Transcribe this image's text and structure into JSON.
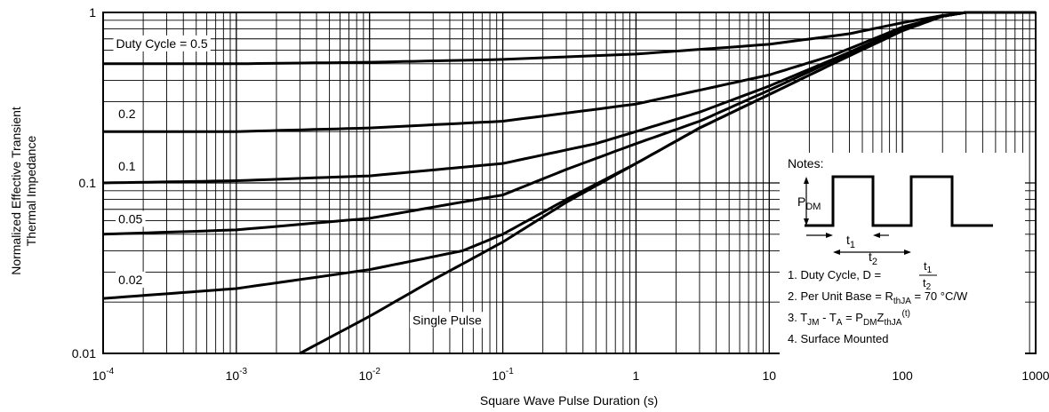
{
  "chart_data": {
    "type": "line",
    "xlabel": "Square Wave Pulse Duration (s)",
    "ylabel_line1": "Normalized Effective Transient",
    "ylabel_line2": "Thermal Impedance",
    "xscale": "log",
    "yscale": "log",
    "xlim": [
      0.0001,
      1000
    ],
    "ylim": [
      0.01,
      1
    ],
    "grid": true,
    "x_ticks": [
      {
        "value": 0.0001,
        "base": "10",
        "exp": "-4"
      },
      {
        "value": 0.001,
        "base": "10",
        "exp": "-3"
      },
      {
        "value": 0.01,
        "base": "10",
        "exp": "-2"
      },
      {
        "value": 0.1,
        "base": "10",
        "exp": "-1"
      },
      {
        "value": 1,
        "base": "1",
        "exp": ""
      },
      {
        "value": 10,
        "base": "10",
        "exp": ""
      },
      {
        "value": 100,
        "base": "100",
        "exp": ""
      },
      {
        "value": 1000,
        "base": "1000",
        "exp": ""
      }
    ],
    "y_ticks": [
      {
        "value": 1,
        "label": "1"
      },
      {
        "value": 0.1,
        "label": "0.1"
      },
      {
        "value": 0.01,
        "label": "0.01"
      }
    ],
    "series": [
      {
        "name": "Duty Cycle = 0.5",
        "label_x": 0.000125,
        "label_y": 0.62,
        "points": [
          [
            0.0001,
            0.5
          ],
          [
            0.001,
            0.5
          ],
          [
            0.01,
            0.51
          ],
          [
            0.1,
            0.53
          ],
          [
            1,
            0.57
          ],
          [
            10,
            0.65
          ],
          [
            40,
            0.75
          ],
          [
            100,
            0.87
          ],
          [
            200,
            0.96
          ],
          [
            300,
            1
          ],
          [
            1000,
            1
          ]
        ]
      },
      {
        "name": "0.2",
        "label_x": 0.00013,
        "label_y": 0.24,
        "points": [
          [
            0.0001,
            0.2
          ],
          [
            0.001,
            0.2
          ],
          [
            0.01,
            0.21
          ],
          [
            0.1,
            0.23
          ],
          [
            1,
            0.29
          ],
          [
            10,
            0.43
          ],
          [
            30,
            0.56
          ],
          [
            100,
            0.82
          ],
          [
            200,
            0.95
          ],
          [
            300,
            1
          ],
          [
            1000,
            1
          ]
        ]
      },
      {
        "name": "0.1",
        "label_x": 0.00013,
        "label_y": 0.118,
        "points": [
          [
            0.0001,
            0.1
          ],
          [
            0.001,
            0.103
          ],
          [
            0.01,
            0.11
          ],
          [
            0.1,
            0.13
          ],
          [
            0.5,
            0.17
          ],
          [
            1,
            0.2
          ],
          [
            3,
            0.26
          ],
          [
            10,
            0.37
          ],
          [
            30,
            0.53
          ],
          [
            100,
            0.8
          ],
          [
            200,
            0.95
          ],
          [
            300,
            1
          ],
          [
            1000,
            1
          ]
        ]
      },
      {
        "name": "0.05",
        "label_x": 0.00013,
        "label_y": 0.058,
        "points": [
          [
            0.0001,
            0.05
          ],
          [
            0.001,
            0.053
          ],
          [
            0.01,
            0.062
          ],
          [
            0.1,
            0.085
          ],
          [
            0.3,
            0.12
          ],
          [
            1,
            0.17
          ],
          [
            3,
            0.23
          ],
          [
            10,
            0.35
          ],
          [
            30,
            0.52
          ],
          [
            100,
            0.8
          ],
          [
            200,
            0.95
          ],
          [
            300,
            1
          ],
          [
            1000,
            1
          ]
        ]
      },
      {
        "name": "0.02",
        "label_x": 0.00013,
        "label_y": 0.0255,
        "points": [
          [
            0.0001,
            0.021
          ],
          [
            0.001,
            0.024
          ],
          [
            0.01,
            0.031
          ],
          [
            0.05,
            0.04
          ],
          [
            0.1,
            0.05
          ],
          [
            0.3,
            0.08
          ],
          [
            1,
            0.13
          ],
          [
            3,
            0.21
          ],
          [
            10,
            0.33
          ],
          [
            30,
            0.5
          ],
          [
            100,
            0.79
          ],
          [
            200,
            0.95
          ],
          [
            300,
            1
          ],
          [
            1000,
            1
          ]
        ]
      },
      {
        "name": "Single Pulse",
        "label_x": 0.021,
        "label_y": 0.0148,
        "points": [
          [
            0.003,
            0.01
          ],
          [
            0.01,
            0.0165
          ],
          [
            0.03,
            0.027
          ],
          [
            0.1,
            0.045
          ],
          [
            0.3,
            0.077
          ],
          [
            1,
            0.13
          ],
          [
            3,
            0.21
          ],
          [
            10,
            0.33
          ],
          [
            30,
            0.5
          ],
          [
            100,
            0.78
          ],
          [
            200,
            0.95
          ],
          [
            300,
            1
          ],
          [
            1000,
            1
          ]
        ]
      }
    ]
  },
  "notes": {
    "title": "Notes:",
    "pdm_main": "P",
    "pdm_sub": "DM",
    "t1_main": "t",
    "t1_sub": "1",
    "t2_main": "t",
    "t2_sub": "2",
    "note1_prefix": "1. Duty Cycle, D =",
    "note2_prefix": "2. Per Unit Base = R",
    "note2_sub": "thJA",
    "note2_suffix": " = 70 °C/W",
    "note3_a": "3. T",
    "note3_a_sub": "JM",
    "note3_b": " - T",
    "note3_b_sub": "A",
    "note3_c": " = P",
    "note3_c_sub": "DM",
    "note3_d": "Z",
    "note3_d_sub": "thJA",
    "note3_e_sup": "(t)",
    "note4": "4. Surface Mounted"
  }
}
